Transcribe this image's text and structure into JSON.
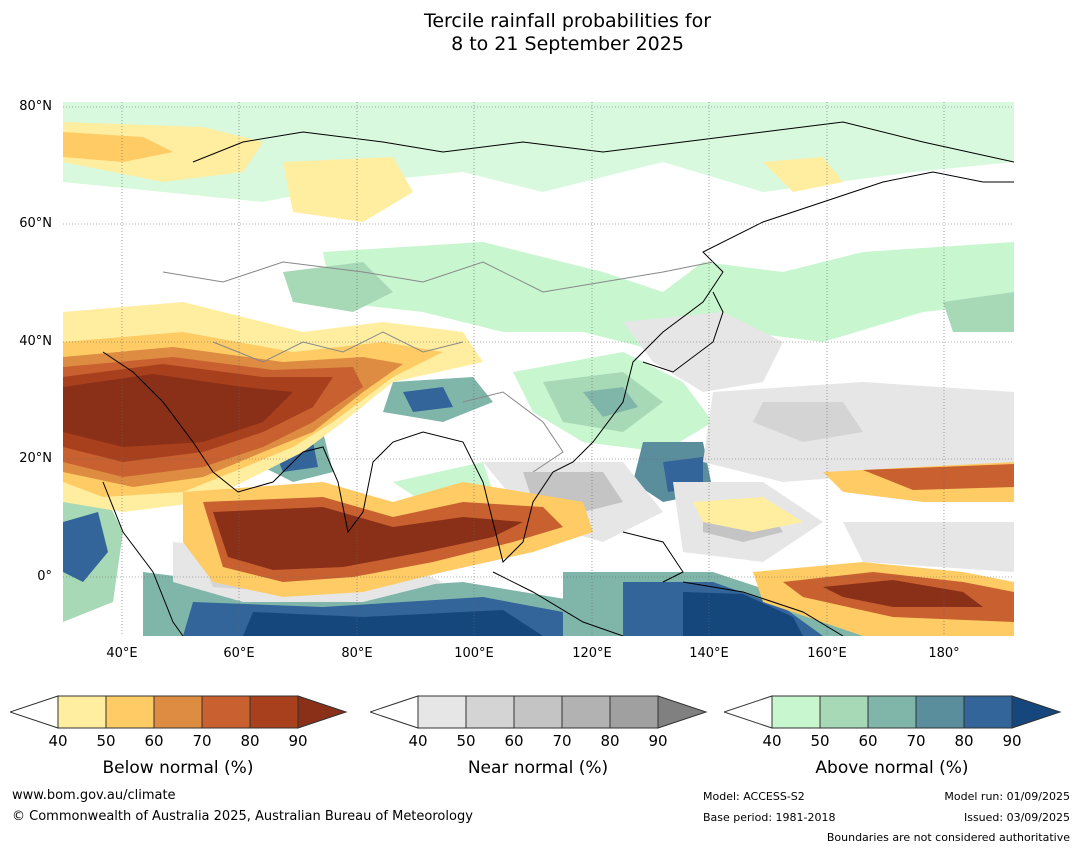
{
  "title": {
    "line1": "Tercile rainfall probabilities for",
    "line2": "8 to 21 September 2025"
  },
  "axes": {
    "lat_labels": [
      "80°N",
      "60°N",
      "40°N",
      "20°N",
      "0°"
    ],
    "lon_labels": [
      "40°E",
      "60°E",
      "80°E",
      "100°E",
      "120°E",
      "140°E",
      "160°E",
      "180°"
    ],
    "lon_range": [
      30,
      192
    ],
    "lat_range": [
      -10,
      81
    ]
  },
  "legends": [
    {
      "title": "Below normal (%)",
      "ticks": [
        "40",
        "50",
        "60",
        "70",
        "80",
        "90"
      ],
      "colors": [
        "#ffeda0",
        "#fecb65",
        "#dd8c42",
        "#c8602f",
        "#a8401d",
        "#8a2f18"
      ]
    },
    {
      "title": "Near normal (%)",
      "ticks": [
        "40",
        "50",
        "60",
        "70",
        "80",
        "90"
      ],
      "colors": [
        "#e6e6e6",
        "#d4d4d4",
        "#c4c4c4",
        "#b2b2b2",
        "#a0a0a0",
        "#808080"
      ]
    },
    {
      "title": "Above normal (%)",
      "ticks": [
        "40",
        "50",
        "60",
        "70",
        "80",
        "90"
      ],
      "colors": [
        "#c7f6cf",
        "#a7d9b7",
        "#80b6aa",
        "#5a8e9c",
        "#33649a",
        "#15467c"
      ]
    }
  ],
  "footer": {
    "website": "www.bom.gov.au/climate",
    "copyright": "© Commonwealth of Australia 2025, Australian Bureau of Meteorology",
    "model": "Model: ACCESS-S2",
    "base_period": "Base period: 1981-2018",
    "model_run": "Model run: 01/09/2025",
    "issued": "Issued: 03/09/2025",
    "disclaimer": "Boundaries are not considered authoritative"
  }
}
